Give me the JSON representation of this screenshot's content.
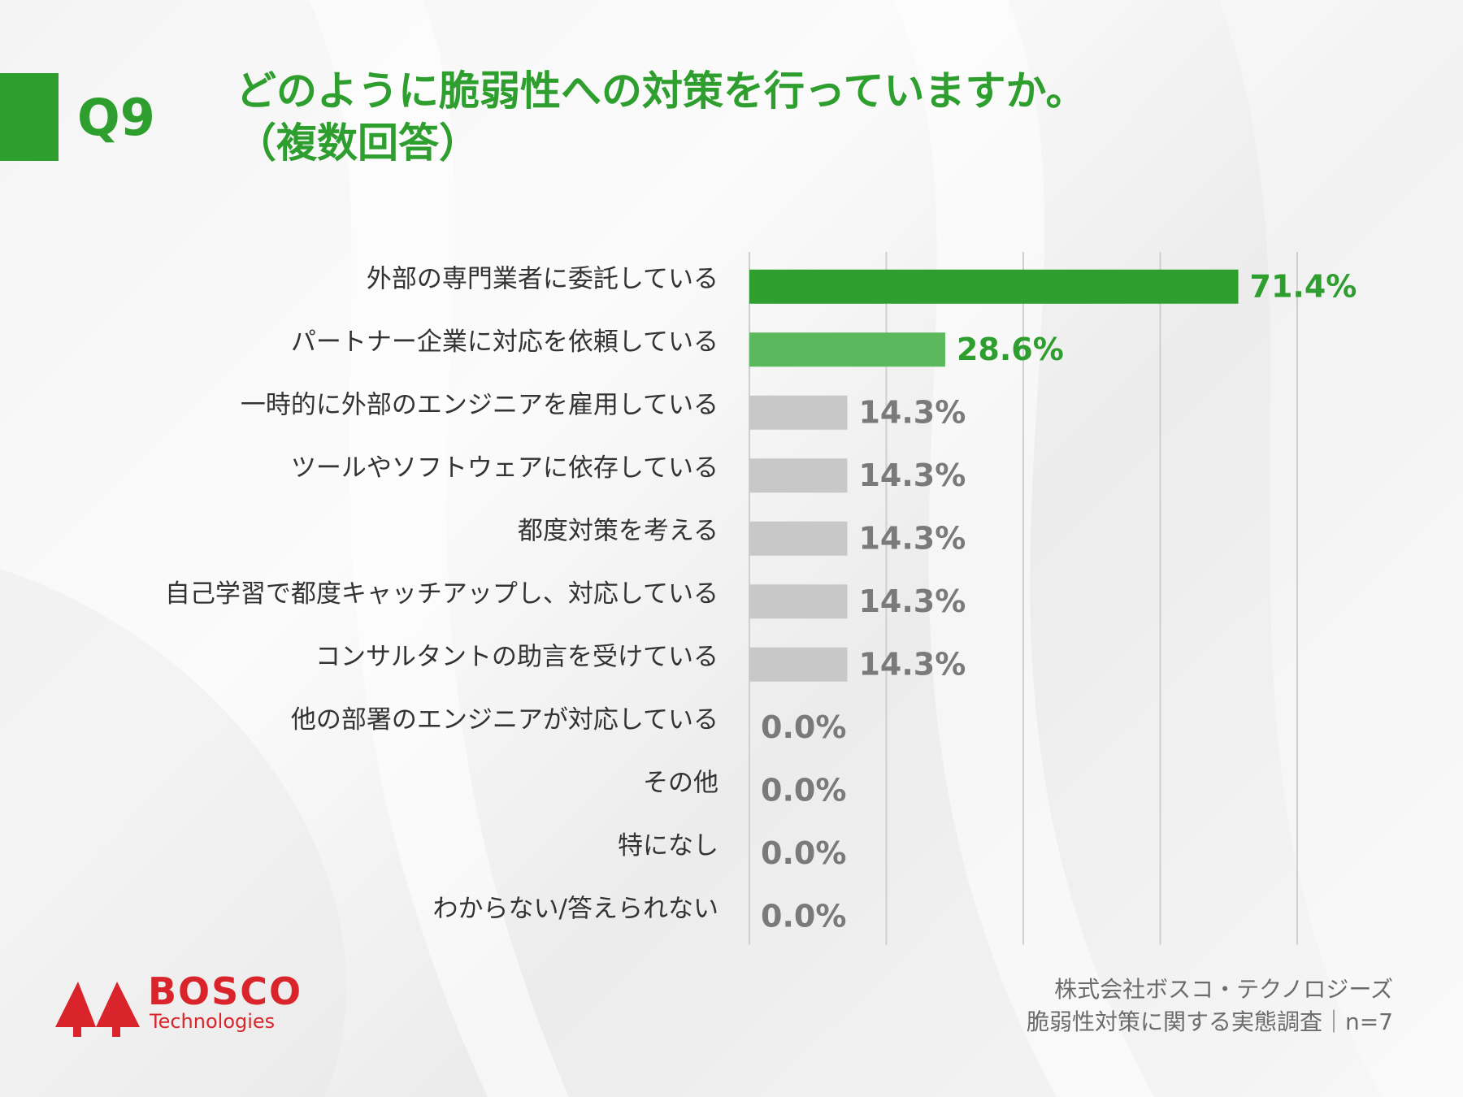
{
  "colors": {
    "accent": "#2e9e2e",
    "accent_light": "#5cb85c",
    "bar_gray": "#c8c8c8",
    "value_gray": "#7a7a7a",
    "grid": "#cfcfcf",
    "logo_red": "#d9242b"
  },
  "header": {
    "question_number": "Q9",
    "title_line1": "どのように脆弱性への対策を行っていますか。",
    "title_line2": "（複数回答）"
  },
  "chart_data": {
    "type": "bar",
    "orientation": "horizontal",
    "categories": [
      "外部の専門業者に委託している",
      "パートナー企業に対応を依頼している",
      "一時的に外部のエンジニアを雇用している",
      "ツールやソフトウェアに依存している",
      "都度対策を考える",
      "自己学習で都度キャッチアップし、対応している",
      "コンサルタントの助言を受けている",
      "他の部署のエンジニアが対応している",
      "その他",
      "特になし",
      "わからない/答えられない"
    ],
    "values": [
      71.4,
      28.6,
      14.3,
      14.3,
      14.3,
      14.3,
      14.3,
      0.0,
      0.0,
      0.0,
      0.0
    ],
    "value_labels": [
      "71.4%",
      "28.6%",
      "14.3%",
      "14.3%",
      "14.3%",
      "14.3%",
      "14.3%",
      "0.0%",
      "0.0%",
      "0.0%",
      "0.0%"
    ],
    "bar_colors": [
      "#2e9e2e",
      "#5cb85c",
      "#c8c8c8",
      "#c8c8c8",
      "#c8c8c8",
      "#c8c8c8",
      "#c8c8c8",
      "#c8c8c8",
      "#c8c8c8",
      "#c8c8c8",
      "#c8c8c8"
    ],
    "label_colors": [
      "#2e9e2e",
      "#2e9e2e",
      "#7a7a7a",
      "#7a7a7a",
      "#7a7a7a",
      "#7a7a7a",
      "#7a7a7a",
      "#7a7a7a",
      "#7a7a7a",
      "#7a7a7a",
      "#7a7a7a"
    ],
    "xlim": [
      0,
      80
    ],
    "gridlines_at": [
      0,
      20,
      40,
      60,
      80
    ],
    "grid": true,
    "legend": false
  },
  "footer": {
    "line1": "株式会社ボスコ・テクノロジーズ",
    "line2": "脆弱性対策に関する実態調査｜n=7"
  },
  "logo": {
    "name": "BOSCO",
    "sub": "Technologies",
    "mark_icon": "twin-tree-icon"
  }
}
